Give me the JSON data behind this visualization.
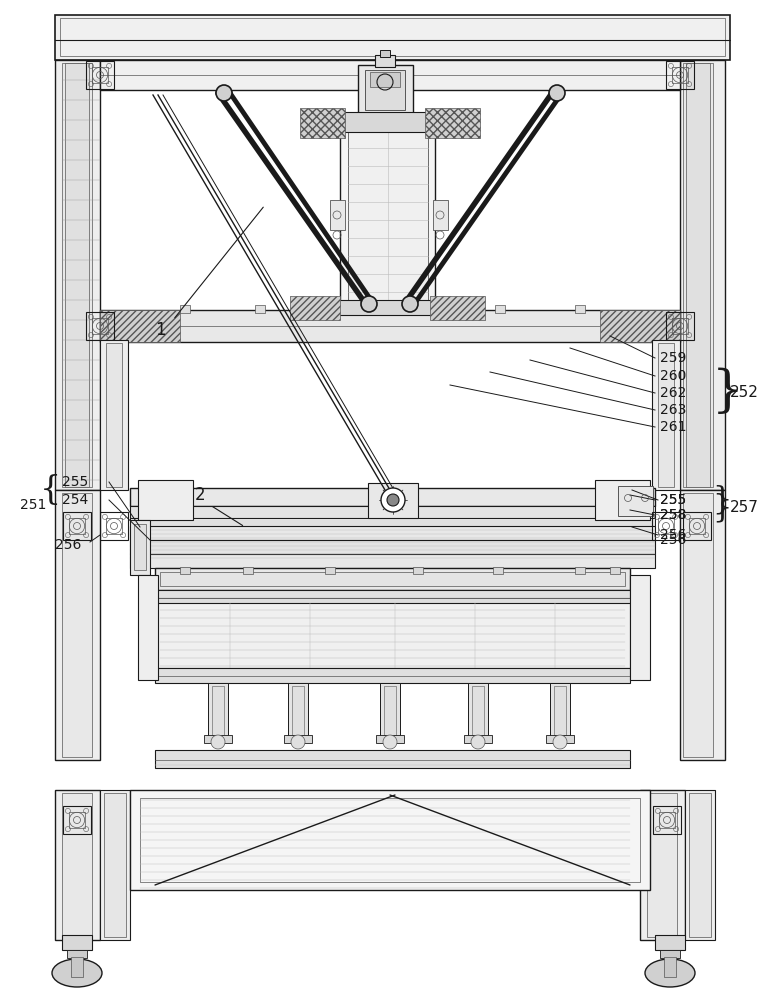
{
  "bg_color": "#ffffff",
  "lc": "#555555",
  "dc": "#1a1a1a",
  "gray": "#999999",
  "lgray": "#bbbbbb",
  "fig_width": 7.83,
  "fig_height": 10.0,
  "dpi": 100
}
